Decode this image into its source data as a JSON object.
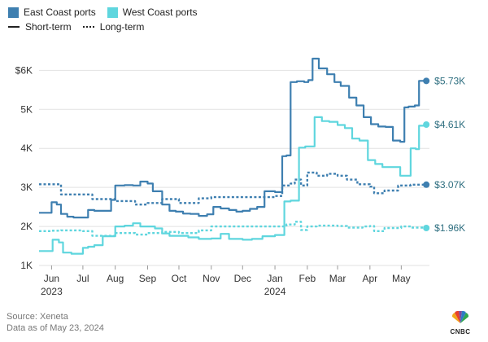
{
  "legend": {
    "series": [
      {
        "label": "East Coast ports",
        "color": "#3e7fb0"
      },
      {
        "label": "West Coast ports",
        "color": "#5fd6de"
      }
    ],
    "styles": [
      {
        "label": "Short-term"
      },
      {
        "label": "Long-term"
      }
    ]
  },
  "footer": {
    "source": "Source: Xeneta",
    "asof": "Data as of May 23, 2024"
  },
  "logo": {
    "text": "CNBC"
  },
  "chart_data": {
    "type": "line",
    "ylim": [
      1000,
      6300
    ],
    "y_ticks": [
      1000,
      2000,
      3000,
      4000,
      5000,
      6000
    ],
    "y_tick_labels": [
      "1K",
      "2K",
      "3K",
      "4K",
      "5K",
      "$6K"
    ],
    "x_range": [
      "2023-05-20",
      "2024-05-28"
    ],
    "x_ticks": [
      {
        "date": "2023-06-01",
        "label": "Jun",
        "sub": "2023"
      },
      {
        "date": "2023-07-01",
        "label": "Jul",
        "sub": ""
      },
      {
        "date": "2023-08-01",
        "label": "Aug",
        "sub": ""
      },
      {
        "date": "2023-09-01",
        "label": "Sep",
        "sub": ""
      },
      {
        "date": "2023-10-01",
        "label": "Oct",
        "sub": ""
      },
      {
        "date": "2023-11-01",
        "label": "Nov",
        "sub": ""
      },
      {
        "date": "2023-12-01",
        "label": "Dec",
        "sub": ""
      },
      {
        "date": "2024-01-01",
        "label": "Jan",
        "sub": "2024"
      },
      {
        "date": "2024-02-01",
        "label": "Feb",
        "sub": ""
      },
      {
        "date": "2024-03-01",
        "label": "Mar",
        "sub": ""
      },
      {
        "date": "2024-04-01",
        "label": "Apr",
        "sub": ""
      },
      {
        "date": "2024-05-01",
        "label": "May",
        "sub": ""
      }
    ],
    "series": [
      {
        "region": "East Coast ports",
        "term": "Short-term",
        "color": "#3e7fb0",
        "dashed": false,
        "end_label": "$5.73K",
        "x": [
          "2023-05-20",
          "2023-05-30",
          "2023-06-01",
          "2023-06-06",
          "2023-06-10",
          "2023-06-16",
          "2023-06-22",
          "2023-07-01",
          "2023-07-06",
          "2023-07-12",
          "2023-07-20",
          "2023-07-28",
          "2023-08-01",
          "2023-08-10",
          "2023-08-18",
          "2023-08-25",
          "2023-09-01",
          "2023-09-06",
          "2023-09-15",
          "2023-09-22",
          "2023-09-28",
          "2023-10-05",
          "2023-10-12",
          "2023-10-20",
          "2023-10-28",
          "2023-11-03",
          "2023-11-10",
          "2023-11-18",
          "2023-11-25",
          "2023-12-01",
          "2023-12-08",
          "2023-12-15",
          "2023-12-22",
          "2024-01-01",
          "2024-01-08",
          "2024-01-12",
          "2024-01-16",
          "2024-01-22",
          "2024-01-29",
          "2024-02-02",
          "2024-02-06",
          "2024-02-12",
          "2024-02-20",
          "2024-02-27",
          "2024-03-04",
          "2024-03-12",
          "2024-03-19",
          "2024-03-26",
          "2024-04-02",
          "2024-04-09",
          "2024-04-16",
          "2024-04-23",
          "2024-04-30",
          "2024-05-04",
          "2024-05-08",
          "2024-05-14",
          "2024-05-18",
          "2024-05-25"
        ],
        "y": [
          2350,
          2350,
          2620,
          2560,
          2320,
          2250,
          2230,
          2230,
          2420,
          2400,
          2400,
          2680,
          3050,
          3060,
          3050,
          3150,
          3100,
          2900,
          2560,
          2400,
          2380,
          2330,
          2320,
          2270,
          2310,
          2500,
          2460,
          2420,
          2380,
          2400,
          2450,
          2500,
          2900,
          2880,
          3800,
          3820,
          5700,
          5720,
          5700,
          5750,
          6300,
          6050,
          5900,
          5700,
          5600,
          5300,
          5100,
          4800,
          4620,
          4560,
          4550,
          4200,
          4170,
          5050,
          5070,
          5100,
          5730,
          5730
        ]
      },
      {
        "region": "East Coast ports",
        "term": "Long-term",
        "color": "#3e7fb0",
        "dashed": true,
        "end_label": "$3.07K",
        "x": [
          "2023-05-20",
          "2023-06-01",
          "2023-06-10",
          "2023-07-01",
          "2023-07-10",
          "2023-08-01",
          "2023-08-20",
          "2023-09-01",
          "2023-09-15",
          "2023-10-01",
          "2023-10-20",
          "2023-11-01",
          "2023-12-01",
          "2024-01-01",
          "2024-01-08",
          "2024-01-16",
          "2024-01-20",
          "2024-01-26",
          "2024-02-01",
          "2024-02-10",
          "2024-02-20",
          "2024-03-01",
          "2024-03-10",
          "2024-03-20",
          "2024-04-01",
          "2024-04-05",
          "2024-04-15",
          "2024-04-28",
          "2024-05-10",
          "2024-05-25"
        ],
        "y": [
          3080,
          3080,
          2820,
          2820,
          2700,
          2650,
          2560,
          2600,
          2700,
          2600,
          2720,
          2750,
          2750,
          2780,
          3050,
          3100,
          3200,
          3050,
          3380,
          3300,
          3350,
          3300,
          3200,
          3080,
          3020,
          2850,
          2920,
          3050,
          3070,
          3070
        ]
      },
      {
        "region": "West Coast ports",
        "term": "Short-term",
        "color": "#5fd6de",
        "dashed": false,
        "end_label": "$4.61K",
        "x": [
          "2023-05-20",
          "2023-05-30",
          "2023-06-02",
          "2023-06-08",
          "2023-06-12",
          "2023-06-20",
          "2023-07-01",
          "2023-07-06",
          "2023-07-12",
          "2023-07-20",
          "2023-07-28",
          "2023-08-01",
          "2023-08-10",
          "2023-08-18",
          "2023-08-25",
          "2023-09-01",
          "2023-09-08",
          "2023-09-15",
          "2023-09-22",
          "2023-10-01",
          "2023-10-10",
          "2023-10-20",
          "2023-11-01",
          "2023-11-10",
          "2023-11-18",
          "2023-12-01",
          "2023-12-10",
          "2023-12-20",
          "2024-01-01",
          "2024-01-10",
          "2024-01-16",
          "2024-01-24",
          "2024-01-30",
          "2024-02-03",
          "2024-02-08",
          "2024-02-15",
          "2024-02-22",
          "2024-03-01",
          "2024-03-08",
          "2024-03-15",
          "2024-03-22",
          "2024-03-30",
          "2024-04-06",
          "2024-04-13",
          "2024-04-20",
          "2024-04-30",
          "2024-05-03",
          "2024-05-10",
          "2024-05-15",
          "2024-05-18",
          "2024-05-25"
        ],
        "y": [
          1370,
          1370,
          1660,
          1590,
          1330,
          1300,
          1450,
          1480,
          1520,
          1750,
          1750,
          2000,
          2020,
          2080,
          2000,
          2000,
          1950,
          1820,
          1760,
          1760,
          1720,
          1680,
          1690,
          1810,
          1680,
          1660,
          1680,
          1750,
          1780,
          2640,
          2660,
          4020,
          4050,
          4050,
          4800,
          4700,
          4680,
          4600,
          4520,
          4250,
          4200,
          3700,
          3600,
          3520,
          3520,
          3300,
          3300,
          4000,
          3980,
          4580,
          4610
        ]
      },
      {
        "region": "West Coast ports",
        "term": "Long-term",
        "color": "#5fd6de",
        "dashed": true,
        "end_label": "$1.96K",
        "x": [
          "2023-05-20",
          "2023-06-01",
          "2023-06-10",
          "2023-07-01",
          "2023-07-10",
          "2023-08-01",
          "2023-08-20",
          "2023-09-01",
          "2023-09-15",
          "2023-10-01",
          "2023-10-20",
          "2023-11-01",
          "2023-11-20",
          "2023-12-01",
          "2024-01-01",
          "2024-01-12",
          "2024-01-20",
          "2024-01-26",
          "2024-02-01",
          "2024-02-10",
          "2024-03-01",
          "2024-03-10",
          "2024-03-25",
          "2024-04-01",
          "2024-04-05",
          "2024-04-15",
          "2024-05-01",
          "2024-05-10",
          "2024-05-25"
        ],
        "y": [
          1880,
          1890,
          1900,
          1880,
          1760,
          1830,
          1790,
          1830,
          1860,
          1830,
          1900,
          2000,
          2000,
          2000,
          2000,
          2050,
          2120,
          1910,
          2000,
          2020,
          2010,
          1970,
          2000,
          2010,
          1880,
          1960,
          2000,
          1970,
          1960
        ]
      }
    ]
  }
}
